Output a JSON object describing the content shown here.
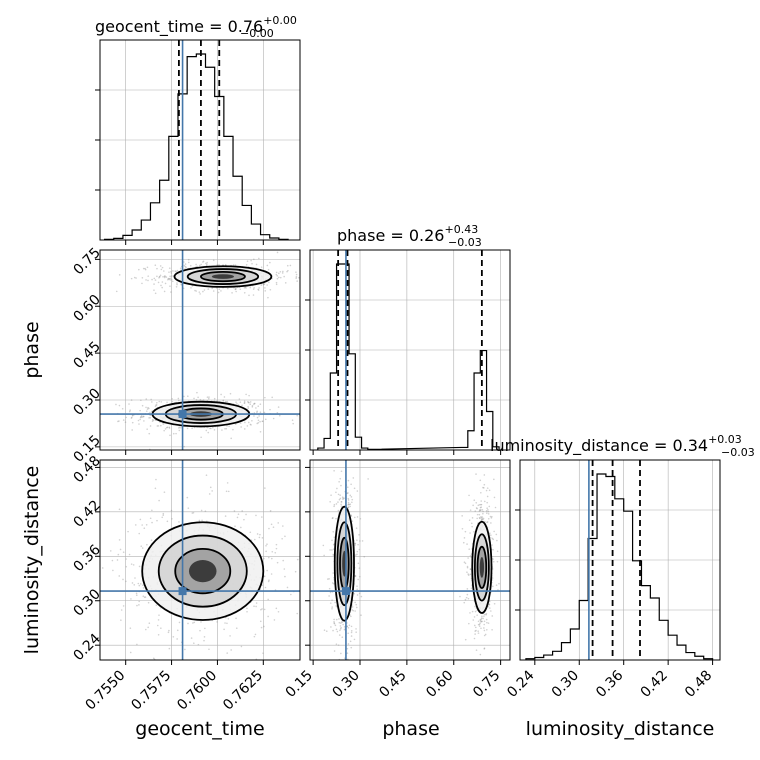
{
  "colors": {
    "truth": "#4477aa",
    "contour": "#000000",
    "grid": "#b0b0b0",
    "scatter": "#9a9a9a"
  },
  "labels": {
    "x": "geocent_time",
    "y": "phase",
    "z": "luminosity_distance"
  },
  "titles": {
    "x": {
      "text": "geocent_time = 0.76",
      "sup": "+0.00",
      "sub": "−0.00"
    },
    "y": {
      "text": "phase = 0.26",
      "sup": "+0.43",
      "sub": "−0.03"
    },
    "z": {
      "text": "luminosity_distance = 0.34",
      "sup": "+0.03",
      "sub": "−0.03"
    }
  },
  "chart_data": {
    "type": "corner",
    "grid": true,
    "parameters": [
      "geocent_time",
      "phase",
      "luminosity_distance"
    ],
    "truths": {
      "geocent_time": 0.7581,
      "phase": 0.255,
      "luminosity_distance": 0.313
    },
    "quantiles": {
      "geocent_time": [
        0.7579,
        0.7591,
        0.7601
      ],
      "phase": [
        0.23,
        0.26,
        0.69
      ],
      "luminosity_distance": [
        0.318,
        0.345,
        0.382
      ]
    },
    "ranges": {
      "geocent_time": [
        0.7536,
        0.7645
      ],
      "phase": [
        0.14,
        0.78
      ],
      "luminosity_distance": [
        0.22,
        0.49
      ]
    },
    "ticks": {
      "geocent_time": [
        "0.7550",
        "0.7575",
        "0.7600",
        "0.7625"
      ],
      "phase": [
        "0.15",
        "0.30",
        "0.45",
        "0.60",
        "0.75"
      ],
      "luminosity_distance": [
        "0.24",
        "0.30",
        "0.36",
        "0.42",
        "0.48"
      ]
    },
    "histograms": {
      "geocent_time": {
        "bins": [
          0.7541,
          0.7546,
          0.7551,
          0.7556,
          0.7561,
          0.7566,
          0.7571,
          0.7576,
          0.7581,
          0.7586,
          0.7591,
          0.7596,
          0.7601,
          0.7606,
          0.7611,
          0.7616,
          0.7621,
          0.7626,
          0.7631,
          0.7636
        ],
        "counts": [
          0.5,
          1.2,
          3.5,
          7.5,
          15,
          28,
          45,
          78,
          110,
          138,
          140,
          130,
          108,
          78,
          48,
          26,
          12,
          4,
          1.5,
          0.5
        ]
      },
      "phase": {
        "bins": [
          0.175,
          0.195,
          0.215,
          0.235,
          0.255,
          0.275,
          0.295,
          0.315,
          0.335,
          0.635,
          0.655,
          0.675,
          0.695,
          0.715,
          0.735
        ],
        "counts": [
          3,
          18,
          120,
          290,
          290,
          150,
          20,
          3,
          1,
          4,
          30,
          120,
          155,
          60,
          5
        ]
      },
      "luminosity_distance": {
        "bins": [
          0.234,
          0.246,
          0.258,
          0.27,
          0.282,
          0.294,
          0.306,
          0.318,
          0.33,
          0.342,
          0.354,
          0.366,
          0.378,
          0.39,
          0.402,
          0.414,
          0.426,
          0.438,
          0.45,
          0.462,
          0.474
        ],
        "counts": [
          1,
          2,
          4,
          7,
          14,
          25,
          48,
          98,
          150,
          148,
          130,
          120,
          80,
          60,
          50,
          32,
          20,
          12,
          6,
          3,
          1
        ]
      }
    },
    "pairs": [
      {
        "x": "geocent_time",
        "y": "phase",
        "modes": [
          {
            "cx": 0.7591,
            "cy": 0.255,
            "sx": 0.0012,
            "sy": 0.018
          },
          {
            "cx": 0.7603,
            "cy": 0.695,
            "sx": 0.0012,
            "sy": 0.015
          }
        ]
      },
      {
        "x": "geocent_time",
        "y": "luminosity_distance",
        "modes": [
          {
            "cx": 0.7592,
            "cy": 0.34,
            "sx": 0.0015,
            "sy": 0.03
          }
        ]
      },
      {
        "x": "phase",
        "y": "luminosity_distance",
        "modes": [
          {
            "cx": 0.25,
            "cy": 0.35,
            "sx": 0.014,
            "sy": 0.035
          },
          {
            "cx": 0.69,
            "cy": 0.345,
            "sx": 0.014,
            "sy": 0.028
          }
        ]
      }
    ]
  }
}
